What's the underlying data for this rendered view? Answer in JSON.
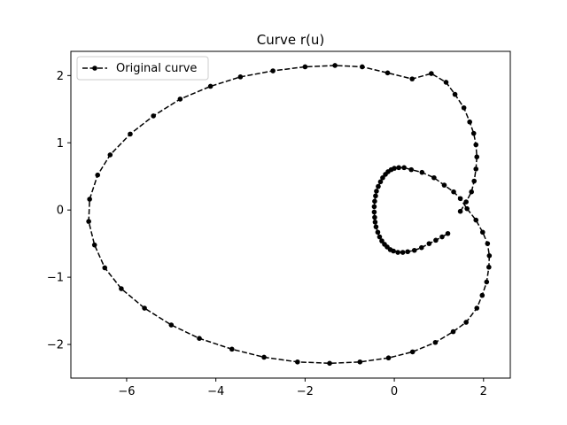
{
  "chart_data": {
    "type": "line",
    "title": "Curve r(u)",
    "xlabel": "",
    "ylabel": "",
    "xlim": [
      -7.25,
      2.6
    ],
    "ylim": [
      -2.5,
      2.36
    ],
    "xticks": [
      -6,
      -4,
      -2,
      0,
      2
    ],
    "yticks": [
      -2,
      -1,
      0,
      1,
      2
    ],
    "grid": false,
    "legend_position": "top-left",
    "series": [
      {
        "name": "Original curve",
        "color": "#000000",
        "line_style": "dashed",
        "marker": "circle",
        "points": [
          [
            1.48,
            -0.02
          ],
          [
            1.61,
            0.12
          ],
          [
            1.73,
            0.27
          ],
          [
            1.79,
            0.43
          ],
          [
            1.83,
            0.61
          ],
          [
            1.85,
            0.79
          ],
          [
            1.83,
            0.97
          ],
          [
            1.78,
            1.14
          ],
          [
            1.69,
            1.31
          ],
          [
            1.56,
            1.52
          ],
          [
            1.36,
            1.72
          ],
          [
            1.16,
            1.9
          ],
          [
            0.83,
            2.03
          ],
          [
            0.4,
            1.95
          ],
          [
            -0.15,
            2.04
          ],
          [
            -0.72,
            2.13
          ],
          [
            -1.33,
            2.15
          ],
          [
            -2.0,
            2.13
          ],
          [
            -2.72,
            2.07
          ],
          [
            -3.45,
            1.98
          ],
          [
            -4.12,
            1.84
          ],
          [
            -4.8,
            1.65
          ],
          [
            -5.4,
            1.4
          ],
          [
            -5.92,
            1.13
          ],
          [
            -6.37,
            0.82
          ],
          [
            -6.65,
            0.52
          ],
          [
            -6.83,
            0.16
          ],
          [
            -6.85,
            -0.17
          ],
          [
            -6.72,
            -0.52
          ],
          [
            -6.49,
            -0.86
          ],
          [
            -6.12,
            -1.17
          ],
          [
            -5.6,
            -1.46
          ],
          [
            -5.0,
            -1.71
          ],
          [
            -4.37,
            -1.91
          ],
          [
            -3.64,
            -2.07
          ],
          [
            -2.92,
            -2.19
          ],
          [
            -2.17,
            -2.26
          ],
          [
            -1.45,
            -2.28
          ],
          [
            -0.77,
            -2.26
          ],
          [
            -0.13,
            -2.2
          ],
          [
            0.41,
            -2.11
          ],
          [
            0.92,
            -1.97
          ],
          [
            1.32,
            -1.81
          ],
          [
            1.61,
            -1.67
          ],
          [
            1.85,
            -1.46
          ],
          [
            1.97,
            -1.27
          ],
          [
            2.07,
            -1.07
          ],
          [
            2.12,
            -0.85
          ],
          [
            2.13,
            -0.68
          ],
          [
            2.09,
            -0.5
          ],
          [
            1.98,
            -0.33
          ],
          [
            1.83,
            -0.15
          ],
          [
            1.63,
            0.02
          ],
          [
            1.48,
            0.17
          ],
          [
            1.33,
            0.27
          ],
          [
            1.12,
            0.37
          ],
          [
            0.89,
            0.48
          ],
          [
            0.62,
            0.56
          ],
          [
            0.38,
            0.6
          ],
          [
            0.22,
            0.63
          ],
          [
            0.1,
            0.63
          ],
          [
            0.0,
            0.62
          ],
          [
            -0.07,
            0.6
          ],
          [
            -0.14,
            0.57
          ],
          [
            -0.2,
            0.53
          ],
          [
            -0.26,
            0.48
          ],
          [
            -0.31,
            0.42
          ],
          [
            -0.36,
            0.35
          ],
          [
            -0.4,
            0.28
          ],
          [
            -0.42,
            0.21
          ],
          [
            -0.44,
            0.13
          ],
          [
            -0.45,
            0.05
          ],
          [
            -0.45,
            -0.03
          ],
          [
            -0.44,
            -0.11
          ],
          [
            -0.43,
            -0.18
          ],
          [
            -0.41,
            -0.25
          ],
          [
            -0.37,
            -0.33
          ],
          [
            -0.33,
            -0.4
          ],
          [
            -0.28,
            -0.46
          ],
          [
            -0.22,
            -0.51
          ],
          [
            -0.16,
            -0.55
          ],
          [
            -0.09,
            -0.59
          ],
          [
            -0.02,
            -0.61
          ],
          [
            0.08,
            -0.63
          ],
          [
            0.19,
            -0.63
          ],
          [
            0.3,
            -0.62
          ],
          [
            0.45,
            -0.6
          ],
          [
            0.61,
            -0.56
          ],
          [
            0.78,
            -0.5
          ],
          [
            0.93,
            -0.45
          ],
          [
            1.07,
            -0.4
          ],
          [
            1.2,
            -0.35
          ]
        ]
      }
    ]
  }
}
